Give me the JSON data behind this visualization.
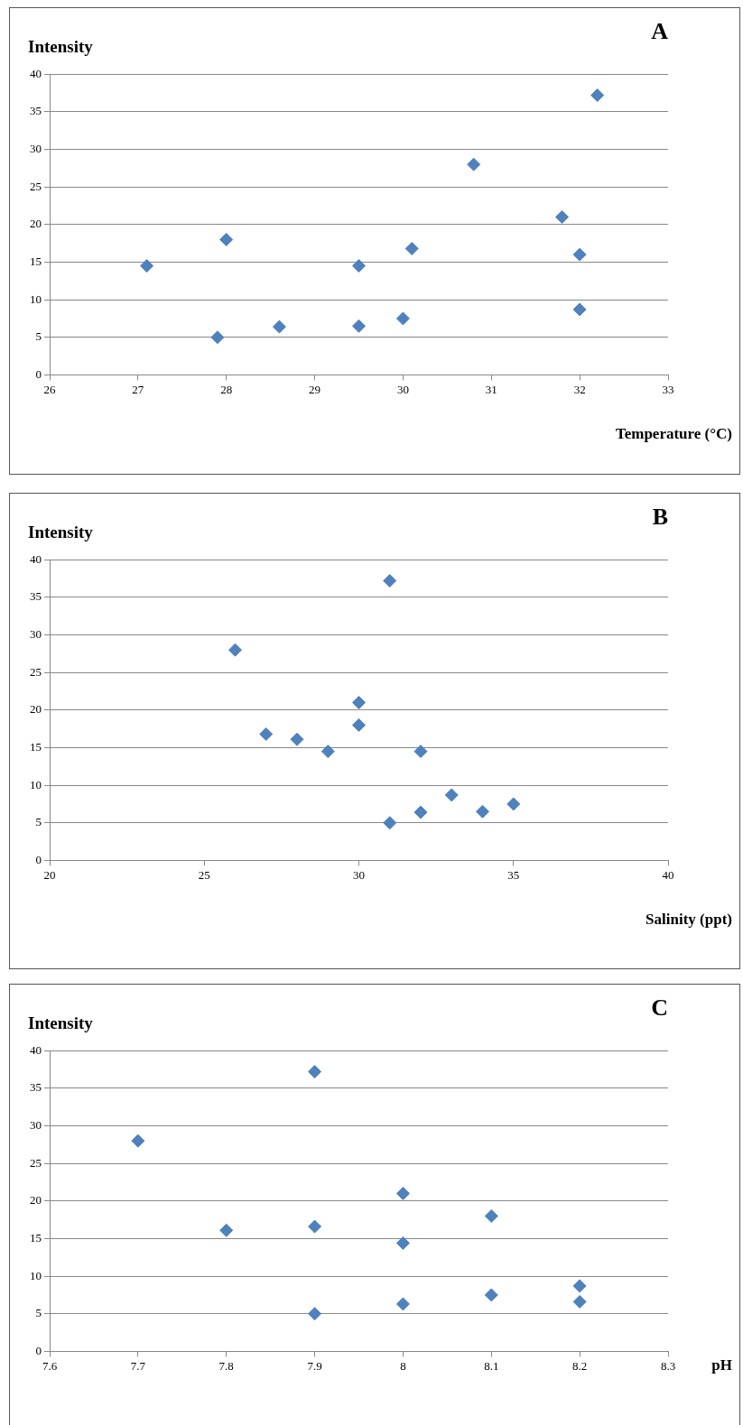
{
  "chart_data": [
    {
      "type": "scatter",
      "title": "A",
      "ylabel": "Intensity",
      "xlabel": "Temperature (°C)",
      "color": "#4f81bd",
      "marker": "diamond",
      "grid": "y",
      "legend": false,
      "x": [
        27.1,
        28.0,
        27.9,
        28.6,
        29.5,
        29.5,
        30.0,
        30.1,
        30.8,
        31.8,
        32.0,
        32.0,
        32.2
      ],
      "values": [
        14.5,
        18,
        5,
        6.4,
        14.5,
        6.5,
        7.5,
        16.8,
        28,
        21,
        16,
        8.7,
        37.2
      ],
      "xlim": [
        26,
        33
      ],
      "xticks": [
        26,
        27,
        28,
        29,
        30,
        31,
        32,
        33
      ],
      "ylim": [
        0,
        40
      ],
      "yticks": [
        0,
        5,
        10,
        15,
        20,
        25,
        30,
        35,
        40
      ]
    },
    {
      "type": "scatter",
      "title": "B",
      "ylabel": "Intensity",
      "xlabel": "Salinity (ppt)",
      "color": "#4f81bd",
      "marker": "diamond",
      "grid": "y",
      "legend": false,
      "x": [
        26,
        27,
        28,
        29,
        30,
        30,
        31,
        31,
        32,
        32,
        33,
        34,
        35
      ],
      "values": [
        28,
        16.8,
        16.1,
        14.5,
        21,
        18,
        37.2,
        5,
        14.5,
        6.4,
        8.7,
        6.5,
        7.5
      ],
      "xlim": [
        20,
        40
      ],
      "xticks": [
        20,
        25,
        30,
        35,
        40
      ],
      "ylim": [
        0,
        40
      ],
      "yticks": [
        0,
        5,
        10,
        15,
        20,
        25,
        30,
        35,
        40
      ]
    },
    {
      "type": "scatter",
      "title": "C",
      "ylabel": "Intensity",
      "xlabel": "pH",
      "color": "#4f81bd",
      "marker": "diamond",
      "grid": "y",
      "legend": false,
      "x": [
        7.7,
        7.8,
        7.9,
        7.9,
        7.9,
        8.0,
        8.0,
        8.0,
        8.1,
        8.1,
        8.2,
        8.2
      ],
      "values": [
        28,
        16.1,
        37.2,
        16.6,
        5,
        21,
        14.4,
        6.3,
        18,
        7.5,
        8.7,
        6.6
      ],
      "xlim": [
        7.6,
        8.3
      ],
      "xticks": [
        7.6,
        7.7,
        7.8,
        7.9,
        8,
        8.1,
        8.2,
        8.3
      ],
      "ylim": [
        0,
        40
      ],
      "yticks": [
        0,
        5,
        10,
        15,
        20,
        25,
        30,
        35,
        40
      ]
    }
  ]
}
